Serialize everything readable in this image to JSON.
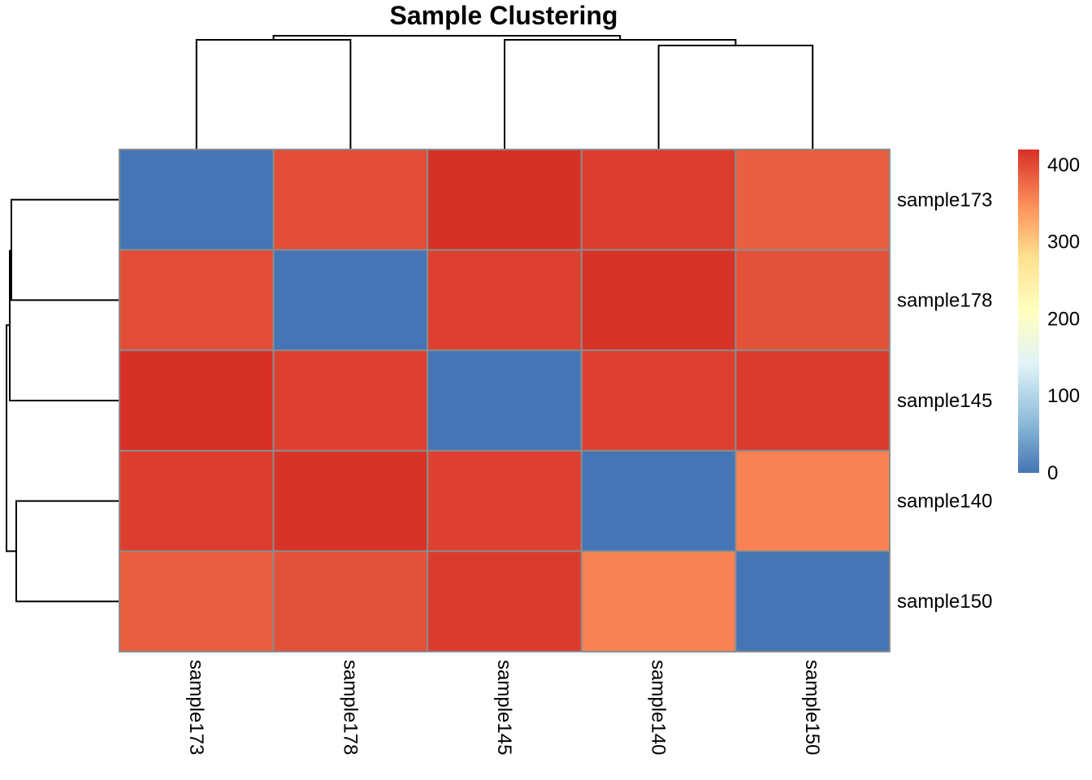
{
  "chart_data": {
    "type": "heatmap",
    "title": "Sample Clustering",
    "rows": [
      "sample173",
      "sample178",
      "sample145",
      "sample140",
      "sample150"
    ],
    "columns": [
      "sample173",
      "sample178",
      "sample145",
      "sample140",
      "sample150"
    ],
    "values": [
      [
        0,
        398,
        420,
        410,
        385
      ],
      [
        398,
        0,
        408,
        418,
        395
      ],
      [
        420,
        408,
        0,
        408,
        412
      ],
      [
        410,
        418,
        408,
        0,
        358
      ],
      [
        385,
        395,
        412,
        358,
        0
      ]
    ],
    "colorbar": {
      "ticks": [
        0,
        100,
        200,
        300,
        400
      ],
      "range": [
        0,
        420
      ],
      "colors": [
        "#4575b4",
        "#91bfdb",
        "#e0f3f8",
        "#ffffbf",
        "#fee090",
        "#fc8d59",
        "#d73027"
      ]
    },
    "dendrogram_columns": "((sample173,sample178),(sample145,(sample140,sample150)))",
    "dendrogram_rows": "(((sample173,sample178),sample145),(sample140,sample150))",
    "cell_border_color": "#8c8c8c"
  }
}
